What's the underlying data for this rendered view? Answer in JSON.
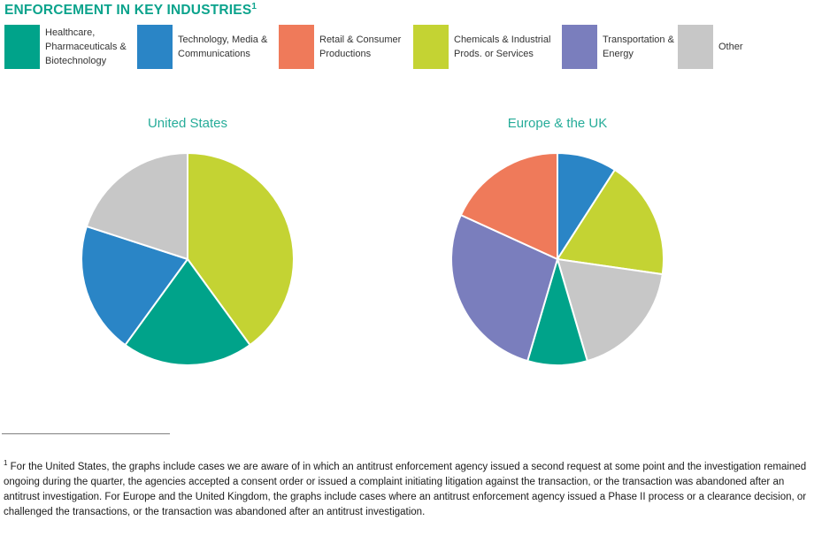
{
  "header": {
    "title": "ENFORCEMENT IN KEY INDUSTRIES",
    "footnote_marker": "1"
  },
  "colors": {
    "accent_teal": "#0BA38C",
    "chart_title_teal": "#26AC99",
    "healthcare": "#00A38A",
    "technology": "#2A85C6",
    "retail": "#EF7A5A",
    "chemicals": "#C4D333",
    "transportation": "#7A7EBD",
    "other": "#C7C7C7",
    "divider_gray": "#808080"
  },
  "legend": {
    "items": [
      {
        "label": "Healthcare,\nPharmaceuticals &\nBiotechnology",
        "color": "#00A38A"
      },
      {
        "label": "Technology, Media &\nCommunications",
        "color": "#2A85C6"
      },
      {
        "label": "Retail & Consumer\nProductions",
        "color": "#EF7A5A"
      },
      {
        "label": "Chemicals & Industrial\nProds. or Services",
        "color": "#C4D333"
      },
      {
        "label": "Transportation &\nEnergy",
        "color": "#7A7EBD"
      },
      {
        "label": "Other",
        "color": "#C7C7C7"
      }
    ]
  },
  "chart_data": [
    {
      "type": "pie",
      "title": "United States",
      "start_angle_deg": 0,
      "direction": "clockwise",
      "legend_position": "top",
      "slices": [
        {
          "label": "Chemicals & Industrial Prods. or Services",
          "percent": 40.0,
          "color": "#C4D333"
        },
        {
          "label": "Healthcare, Pharmaceuticals & Biotechnology",
          "percent": 20.0,
          "color": "#00A38A"
        },
        {
          "label": "Technology, Media & Communications",
          "percent": 20.0,
          "color": "#2A85C6"
        },
        {
          "label": "Other",
          "percent": 20.0,
          "color": "#C7C7C7"
        }
      ]
    },
    {
      "type": "pie",
      "title": "Europe & the UK",
      "start_angle_deg": 0,
      "direction": "clockwise",
      "legend_position": "top",
      "slices": [
        {
          "label": "Technology, Media & Communications",
          "percent": 9.1,
          "color": "#2A85C6"
        },
        {
          "label": "Chemicals & Industrial Prods. or Services",
          "percent": 18.2,
          "color": "#C4D333"
        },
        {
          "label": "Other",
          "percent": 18.2,
          "color": "#C7C7C7"
        },
        {
          "label": "Healthcare, Pharmaceuticals & Biotechnology",
          "percent": 9.1,
          "color": "#00A38A"
        },
        {
          "label": "Transportation & Energy",
          "percent": 27.3,
          "color": "#7A7EBD"
        },
        {
          "label": "Retail & Consumer Productions",
          "percent": 18.2,
          "color": "#EF7A5A"
        }
      ]
    }
  ],
  "footnote": {
    "marker": "1",
    "text": "For the United States, the graphs include cases we are aware of in which an antitrust enforcement agency issued a second request at some point and the investigation remained ongoing during the quarter, the agencies accepted a consent order or issued a complaint initiating litigation against the transaction, or the transaction was abandoned after an antitrust investigation. For Europe and the United Kingdom, the graphs include cases where an antitrust enforcement agency issued a Phase II process or a clearance decision, or challenged the transactions, or the transaction was abandoned after an antitrust investigation."
  }
}
